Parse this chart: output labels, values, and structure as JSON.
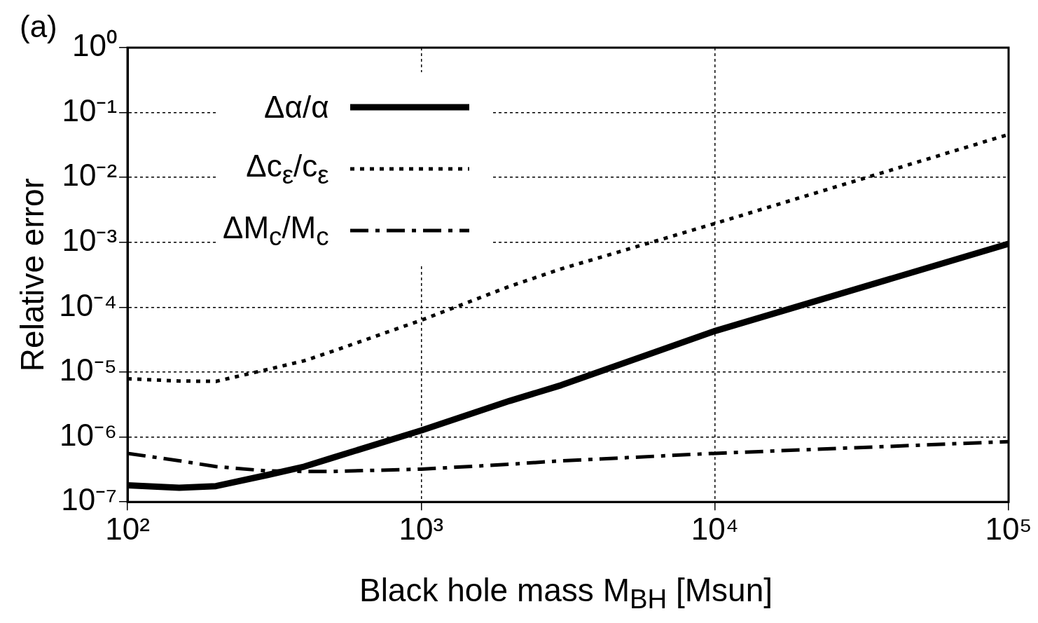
{
  "chart_data": {
    "type": "line",
    "annotations": [
      "(a)"
    ],
    "xlabel": "Black hole mass M$_{BH}$ [Msun]",
    "ylabel": "Relative error",
    "log": "xy",
    "grid": true,
    "legend": "top left",
    "marker": "none",
    "x": [
      100,
      150,
      200,
      300,
      400,
      500,
      1000,
      2000,
      3000,
      10000,
      100000
    ],
    "xlim": [
      100,
      100000
    ],
    "xticks": [
      {
        "value": 100,
        "label": "10²"
      },
      {
        "value": 1000,
        "label": "10³"
      },
      {
        "value": 10000,
        "label": "10⁴"
      },
      {
        "value": 100000,
        "label": "10⁵"
      }
    ],
    "ylim": [
      1e-07,
      1
    ],
    "yticks": [
      {
        "value": 1e-07,
        "label": "10⁻⁷"
      },
      {
        "value": 1e-06,
        "label": "10⁻⁶"
      },
      {
        "value": 1e-05,
        "label": "10⁻⁵"
      },
      {
        "value": 0.0001,
        "label": "10⁻⁴"
      },
      {
        "value": 0.001,
        "label": "10⁻³"
      },
      {
        "value": 0.01,
        "label": "10⁻²"
      },
      {
        "value": 0.1,
        "label": "10⁻¹"
      },
      {
        "value": 1,
        "label": "10⁰"
      }
    ],
    "series": [
      {
        "name": "Δα/α",
        "color": "#000000",
        "line_style": "solid",
        "values": [
          1.8e-07,
          1.65e-07,
          1.75e-07,
          2.6e-07,
          3.5e-07,
          4.8e-07,
          1.26e-06,
          3.6e-06,
          6.3e-06,
          4.3e-05,
          0.00095
        ]
      },
      {
        "name": "Δc$_{ε}$/c$_{ε}$",
        "color": "#000000",
        "line_style": "dotted",
        "values": [
          7.9e-06,
          7.3e-06,
          7.2e-06,
          1.1e-05,
          1.5e-05,
          2.1e-05,
          6.3e-05,
          0.00021,
          0.00039,
          0.00195,
          0.046
        ]
      },
      {
        "name": "ΔM$_{c}$/M$_{c}$",
        "color": "#000000",
        "line_style": "dashed",
        "values": [
          5.6e-07,
          4.3e-07,
          3.5e-07,
          3e-07,
          2.95e-07,
          2.95e-07,
          3.2e-07,
          3.8e-07,
          4.3e-07,
          5.6e-07,
          8.5e-07
        ]
      }
    ]
  }
}
